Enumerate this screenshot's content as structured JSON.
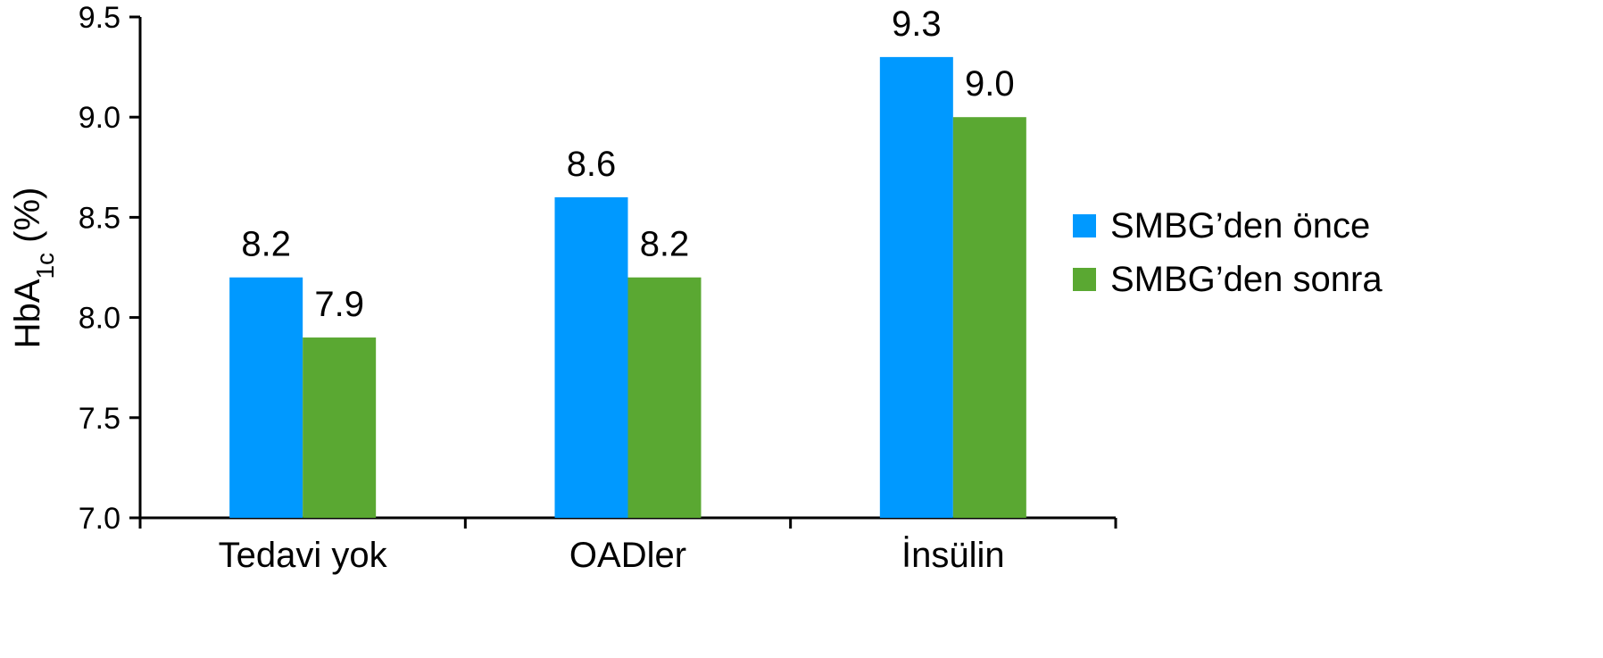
{
  "chart_data": {
    "type": "bar",
    "categories": [
      "Tedavi yok",
      "OADler",
      "İnsülin"
    ],
    "series": [
      {
        "name": "SMBG’den önce",
        "values": [
          8.2,
          8.6,
          9.3
        ],
        "color": "#0099ff"
      },
      {
        "name": "SMBG’den sonra",
        "values": [
          7.9,
          8.2,
          9.0
        ],
        "color": "#5aa832"
      }
    ],
    "data_labels": [
      [
        "8.2",
        "8.6",
        "9.3"
      ],
      [
        "7.9",
        "8.2",
        "9.0"
      ]
    ],
    "ylabel": {
      "main": "HbA",
      "sub": "1c",
      "suffix": " (%)"
    },
    "ylim": [
      7.0,
      9.5
    ],
    "yticks": [
      "7.0",
      "7.5",
      "8.0",
      "8.5",
      "9.0",
      "9.5"
    ],
    "grid": false,
    "legend_position": "right"
  }
}
